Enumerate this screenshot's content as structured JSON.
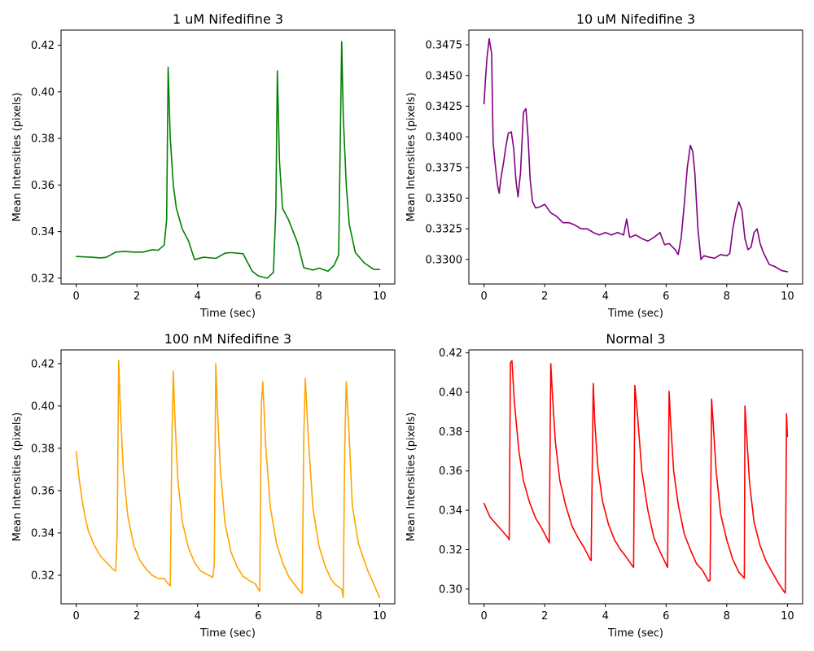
{
  "chart_data": [
    {
      "type": "line",
      "title": "1 uM Nifedifine 3",
      "xlabel": "Time (sec)",
      "ylabel": "Mean Intensities (pixels)",
      "xlim": [
        -0.5,
        10.5
      ],
      "ylim": [
        0.3175,
        0.4265
      ],
      "xticks": [
        0,
        2,
        4,
        6,
        8,
        10
      ],
      "yticks": [
        0.32,
        0.34,
        0.36,
        0.38,
        0.4,
        0.42
      ],
      "ytick_labels": [
        "0.32",
        "0.34",
        "0.36",
        "0.38",
        "0.40",
        "0.42"
      ],
      "color": "#008000",
      "series": [
        {
          "x": [
            0,
            0.5,
            0.8,
            1.0,
            1.3,
            1.6,
            1.9,
            2.2,
            2.5,
            2.7,
            2.9,
            2.98,
            3.03,
            3.1,
            3.2,
            3.3,
            3.5,
            3.7,
            3.9,
            4.2,
            4.6,
            4.9,
            5.1,
            5.5,
            5.8,
            6.0,
            6.3,
            6.5,
            6.58,
            6.63,
            6.7,
            6.8,
            7.0,
            7.3,
            7.5,
            7.8,
            8.0,
            8.3,
            8.5,
            8.65,
            8.75,
            8.8,
            8.9,
            9.0,
            9.2,
            9.5,
            9.8,
            10.0
          ],
          "y": [
            0.3293,
            0.329,
            0.3287,
            0.329,
            0.3312,
            0.3315,
            0.3312,
            0.3312,
            0.3322,
            0.332,
            0.3342,
            0.345,
            0.4105,
            0.38,
            0.36,
            0.35,
            0.341,
            0.336,
            0.328,
            0.329,
            0.3285,
            0.3307,
            0.331,
            0.3305,
            0.323,
            0.321,
            0.32,
            0.3225,
            0.35,
            0.409,
            0.37,
            0.35,
            0.345,
            0.335,
            0.3245,
            0.3235,
            0.3243,
            0.323,
            0.3255,
            0.33,
            0.4215,
            0.39,
            0.36,
            0.343,
            0.331,
            0.3265,
            0.3238,
            0.3237
          ]
        }
      ]
    },
    {
      "type": "line",
      "title": "10 uM Nifedifine 3",
      "xlabel": "Time (sec)",
      "ylabel": "Mean Intensities (pixels)",
      "xlim": [
        -0.5,
        10.5
      ],
      "ylim": [
        0.328,
        0.3487
      ],
      "xticks": [
        0,
        2,
        4,
        6,
        8,
        10
      ],
      "yticks": [
        0.33,
        0.3325,
        0.335,
        0.3375,
        0.34,
        0.3425,
        0.345,
        0.3475
      ],
      "ytick_labels": [
        "0.3300",
        "0.3325",
        "0.3350",
        "0.3375",
        "0.3400",
        "0.3425",
        "0.3450",
        "0.3475"
      ],
      "color": "#800080",
      "series": [
        {
          "x": [
            0,
            0.05,
            0.1,
            0.17,
            0.25,
            0.3,
            0.38,
            0.45,
            0.5,
            0.55,
            0.65,
            0.72,
            0.8,
            0.9,
            0.98,
            1.05,
            1.12,
            1.2,
            1.3,
            1.38,
            1.45,
            1.52,
            1.6,
            1.7,
            1.85,
            2.0,
            2.2,
            2.4,
            2.6,
            2.8,
            3.0,
            3.2,
            3.4,
            3.6,
            3.8,
            4.0,
            4.2,
            4.4,
            4.6,
            4.7,
            4.8,
            5.0,
            5.2,
            5.4,
            5.6,
            5.8,
            5.95,
            6.1,
            6.3,
            6.4,
            6.5,
            6.6,
            6.7,
            6.8,
            6.88,
            6.95,
            7.05,
            7.15,
            7.25,
            7.4,
            7.6,
            7.8,
            8.0,
            8.1,
            8.2,
            8.3,
            8.4,
            8.5,
            8.6,
            8.7,
            8.8,
            8.9,
            9.0,
            9.1,
            9.2,
            9.4,
            9.6,
            9.8,
            10.0
          ],
          "y": [
            0.3427,
            0.3448,
            0.3465,
            0.348,
            0.3468,
            0.3395,
            0.3375,
            0.336,
            0.3354,
            0.3365,
            0.338,
            0.3392,
            0.3403,
            0.3404,
            0.339,
            0.3365,
            0.3351,
            0.337,
            0.342,
            0.3423,
            0.34,
            0.3365,
            0.3347,
            0.3342,
            0.3343,
            0.3345,
            0.3338,
            0.3335,
            0.333,
            0.333,
            0.3328,
            0.3325,
            0.3325,
            0.3322,
            0.332,
            0.3322,
            0.332,
            0.3322,
            0.332,
            0.3333,
            0.3318,
            0.332,
            0.3317,
            0.3315,
            0.3318,
            0.3322,
            0.3312,
            0.3313,
            0.3308,
            0.3304,
            0.3318,
            0.3345,
            0.3375,
            0.3393,
            0.3388,
            0.337,
            0.3325,
            0.33,
            0.3303,
            0.3302,
            0.3301,
            0.3304,
            0.3303,
            0.3305,
            0.3325,
            0.3338,
            0.3347,
            0.334,
            0.3317,
            0.3308,
            0.331,
            0.3322,
            0.3325,
            0.3313,
            0.3306,
            0.3296,
            0.3294,
            0.3291,
            0.329
          ]
        }
      ]
    },
    {
      "type": "line",
      "title": "100 nM Nifedifine 3",
      "xlabel": "Time (sec)",
      "ylabel": "Mean Intensities (pixels)",
      "xlim": [
        -0.5,
        10.5
      ],
      "ylim": [
        0.3065,
        0.4265
      ],
      "xticks": [
        0,
        2,
        4,
        6,
        8,
        10
      ],
      "yticks": [
        0.32,
        0.34,
        0.36,
        0.38,
        0.4,
        0.42
      ],
      "ytick_labels": [
        "0.32",
        "0.34",
        "0.36",
        "0.38",
        "0.40",
        "0.42"
      ],
      "color": "#FFA500",
      "series": [
        {
          "x": [
            0,
            0.1,
            0.2,
            0.3,
            0.4,
            0.6,
            0.8,
            1.0,
            1.2,
            1.3,
            1.35,
            1.4,
            1.45,
            1.55,
            1.7,
            1.9,
            2.1,
            2.3,
            2.5,
            2.7,
            2.9,
            3.0,
            3.1,
            3.15,
            3.2,
            3.25,
            3.35,
            3.5,
            3.7,
            3.9,
            4.1,
            4.3,
            4.5,
            4.55,
            4.6,
            4.65,
            4.75,
            4.9,
            5.1,
            5.3,
            5.5,
            5.7,
            5.9,
            6.0,
            6.05,
            6.1,
            6.15,
            6.25,
            6.4,
            6.6,
            6.8,
            7.0,
            7.2,
            7.4,
            7.45,
            7.5,
            7.55,
            7.65,
            7.8,
            8.0,
            8.2,
            8.4,
            8.55,
            8.75,
            8.8,
            8.85,
            8.9,
            9.0,
            9.1,
            9.3,
            9.6,
            9.8,
            10.0
          ],
          "y": [
            0.3785,
            0.365,
            0.355,
            0.347,
            0.341,
            0.334,
            0.329,
            0.326,
            0.323,
            0.322,
            0.34,
            0.4215,
            0.4,
            0.37,
            0.348,
            0.334,
            0.327,
            0.323,
            0.32,
            0.3185,
            0.3185,
            0.3165,
            0.315,
            0.38,
            0.4165,
            0.395,
            0.365,
            0.345,
            0.333,
            0.326,
            0.322,
            0.3205,
            0.319,
            0.325,
            0.42,
            0.4,
            0.37,
            0.345,
            0.331,
            0.324,
            0.3195,
            0.3175,
            0.316,
            0.3135,
            0.3125,
            0.4,
            0.4115,
            0.38,
            0.352,
            0.335,
            0.326,
            0.3195,
            0.3155,
            0.312,
            0.3115,
            0.385,
            0.413,
            0.385,
            0.352,
            0.334,
            0.3245,
            0.318,
            0.3155,
            0.3135,
            0.3095,
            0.38,
            0.4115,
            0.385,
            0.353,
            0.335,
            0.3225,
            0.316,
            0.3095
          ]
        }
      ]
    },
    {
      "type": "line",
      "title": "Normal 3",
      "xlabel": "Time (sec)",
      "ylabel": "Mean Intensities (pixels)",
      "xlim": [
        -0.5,
        10.5
      ],
      "ylim": [
        0.2925,
        0.4215
      ],
      "xticks": [
        0,
        2,
        4,
        6,
        8,
        10
      ],
      "yticks": [
        0.3,
        0.32,
        0.34,
        0.36,
        0.38,
        0.4,
        0.42
      ],
      "ytick_labels": [
        "0.30",
        "0.32",
        "0.34",
        "0.36",
        "0.38",
        "0.40",
        "0.42"
      ],
      "color": "#FF0000",
      "series": [
        {
          "x": [
            0,
            0.2,
            0.4,
            0.6,
            0.8,
            0.83,
            0.87,
            0.92,
            1.0,
            1.15,
            1.3,
            1.5,
            1.7,
            1.9,
            2.1,
            2.15,
            2.2,
            2.25,
            2.35,
            2.5,
            2.7,
            2.9,
            3.1,
            3.3,
            3.5,
            3.53,
            3.6,
            3.65,
            3.75,
            3.9,
            4.1,
            4.3,
            4.5,
            4.7,
            4.9,
            4.93,
            4.97,
            5.05,
            5.2,
            5.4,
            5.6,
            5.8,
            6.05,
            6.1,
            6.15,
            6.25,
            6.4,
            6.6,
            6.8,
            7.0,
            7.2,
            7.4,
            7.45,
            7.5,
            7.55,
            7.65,
            7.8,
            8.0,
            8.2,
            8.4,
            8.55,
            8.58,
            8.6,
            8.65,
            8.75,
            8.9,
            9.1,
            9.3,
            9.5,
            9.7,
            9.9,
            9.93,
            9.97,
            10.0
          ],
          "y": [
            0.3435,
            0.3365,
            0.333,
            0.3295,
            0.326,
            0.325,
            0.415,
            0.416,
            0.395,
            0.37,
            0.355,
            0.344,
            0.336,
            0.331,
            0.325,
            0.3235,
            0.4145,
            0.4,
            0.375,
            0.355,
            0.342,
            0.332,
            0.326,
            0.321,
            0.315,
            0.3145,
            0.4045,
            0.385,
            0.362,
            0.345,
            0.333,
            0.325,
            0.32,
            0.316,
            0.3115,
            0.311,
            0.4035,
            0.39,
            0.36,
            0.34,
            0.326,
            0.319,
            0.311,
            0.4005,
            0.385,
            0.36,
            0.343,
            0.328,
            0.32,
            0.313,
            0.3095,
            0.304,
            0.3045,
            0.3965,
            0.385,
            0.36,
            0.338,
            0.325,
            0.315,
            0.3085,
            0.306,
            0.3055,
            0.393,
            0.38,
            0.354,
            0.334,
            0.322,
            0.314,
            0.3085,
            0.303,
            0.2985,
            0.298,
            0.389,
            0.3775
          ]
        }
      ]
    }
  ]
}
